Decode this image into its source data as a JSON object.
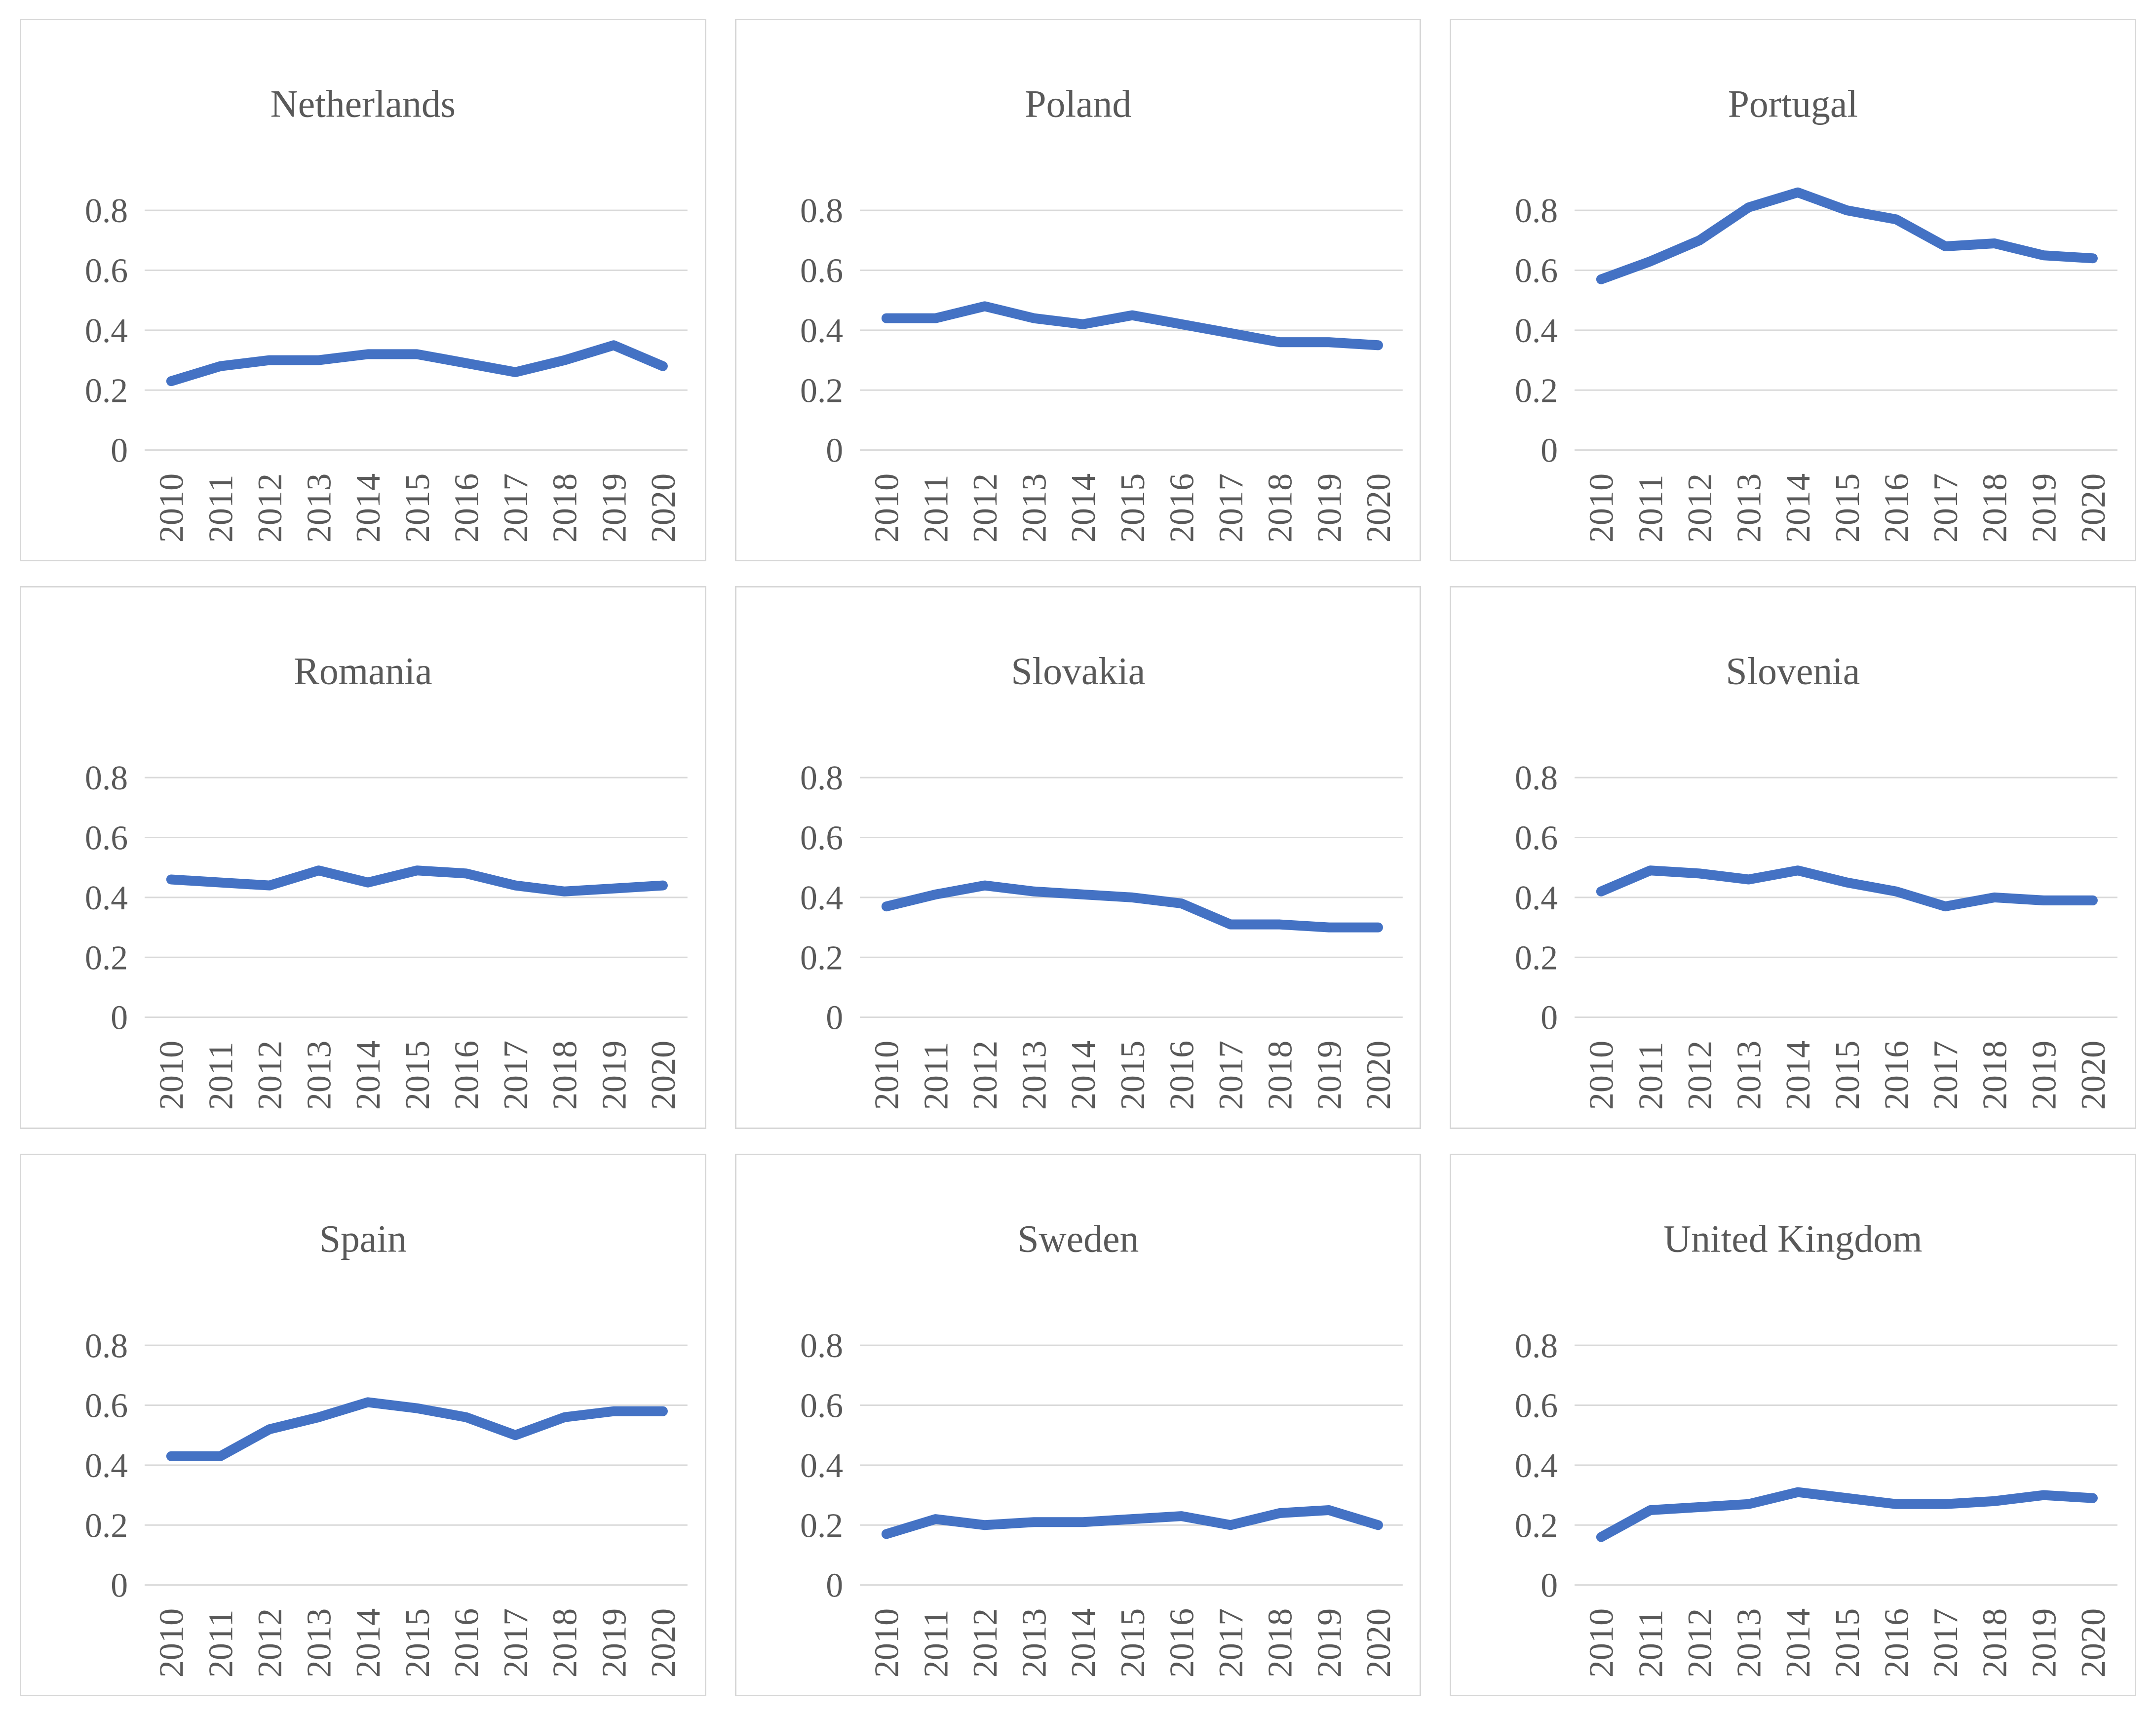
{
  "page": {
    "background": "#ffffff"
  },
  "style": {
    "line_color": "#4472C4",
    "grid_color": "#D9D9D9",
    "panel_border_color": "#D6D6D6",
    "title_color": "#595959",
    "tick_label_color": "#595959"
  },
  "axis": {
    "categories": [
      "2010",
      "2011",
      "2012",
      "2013",
      "2014",
      "2015",
      "2016",
      "2017",
      "2018",
      "2019",
      "2020"
    ],
    "ytick_values": [
      0,
      0.2,
      0.4,
      0.6,
      0.8
    ],
    "ytick_labels": [
      "0",
      "0.2",
      "0.4",
      "0.6",
      "0.8"
    ],
    "ylim": [
      0,
      0.9
    ],
    "grid": true,
    "legend": false
  },
  "chart_data": [
    {
      "type": "line",
      "title": "Netherlands",
      "categories": [
        "2010",
        "2011",
        "2012",
        "2013",
        "2014",
        "2015",
        "2016",
        "2017",
        "2018",
        "2019",
        "2020"
      ],
      "values": [
        0.23,
        0.28,
        0.3,
        0.3,
        0.32,
        0.32,
        0.29,
        0.26,
        0.3,
        0.35,
        0.28
      ],
      "ylim": [
        0,
        0.9
      ],
      "yticks": [
        0,
        0.2,
        0.4,
        0.6,
        0.8
      ]
    },
    {
      "type": "line",
      "title": "Poland",
      "categories": [
        "2010",
        "2011",
        "2012",
        "2013",
        "2014",
        "2015",
        "2016",
        "2017",
        "2018",
        "2019",
        "2020"
      ],
      "values": [
        0.44,
        0.44,
        0.48,
        0.44,
        0.42,
        0.45,
        0.42,
        0.39,
        0.36,
        0.36,
        0.35
      ],
      "ylim": [
        0,
        0.9
      ],
      "yticks": [
        0,
        0.2,
        0.4,
        0.6,
        0.8
      ]
    },
    {
      "type": "line",
      "title": "Portugal",
      "categories": [
        "2010",
        "2011",
        "2012",
        "2013",
        "2014",
        "2015",
        "2016",
        "2017",
        "2018",
        "2019",
        "2020"
      ],
      "values": [
        0.57,
        0.63,
        0.7,
        0.81,
        0.86,
        0.8,
        0.77,
        0.68,
        0.69,
        0.65,
        0.64
      ],
      "ylim": [
        0,
        0.9
      ],
      "yticks": [
        0,
        0.2,
        0.4,
        0.6,
        0.8
      ]
    },
    {
      "type": "line",
      "title": "Romania",
      "categories": [
        "2010",
        "2011",
        "2012",
        "2013",
        "2014",
        "2015",
        "2016",
        "2017",
        "2018",
        "2019",
        "2020"
      ],
      "values": [
        0.46,
        0.45,
        0.44,
        0.49,
        0.45,
        0.49,
        0.48,
        0.44,
        0.42,
        0.43,
        0.44
      ],
      "ylim": [
        0,
        0.9
      ],
      "yticks": [
        0,
        0.2,
        0.4,
        0.6,
        0.8
      ]
    },
    {
      "type": "line",
      "title": "Slovakia",
      "categories": [
        "2010",
        "2011",
        "2012",
        "2013",
        "2014",
        "2015",
        "2016",
        "2017",
        "2018",
        "2019",
        "2020"
      ],
      "values": [
        0.37,
        0.41,
        0.44,
        0.42,
        0.41,
        0.4,
        0.38,
        0.31,
        0.31,
        0.3,
        0.3
      ],
      "ylim": [
        0,
        0.9
      ],
      "yticks": [
        0,
        0.2,
        0.4,
        0.6,
        0.8
      ]
    },
    {
      "type": "line",
      "title": "Slovenia",
      "categories": [
        "2010",
        "2011",
        "2012",
        "2013",
        "2014",
        "2015",
        "2016",
        "2017",
        "2018",
        "2019",
        "2020"
      ],
      "values": [
        0.42,
        0.49,
        0.48,
        0.46,
        0.49,
        0.45,
        0.42,
        0.37,
        0.4,
        0.39,
        0.39
      ],
      "ylim": [
        0,
        0.9
      ],
      "yticks": [
        0,
        0.2,
        0.4,
        0.6,
        0.8
      ]
    },
    {
      "type": "line",
      "title": "Spain",
      "categories": [
        "2010",
        "2011",
        "2012",
        "2013",
        "2014",
        "2015",
        "2016",
        "2017",
        "2018",
        "2019",
        "2020"
      ],
      "values": [
        0.43,
        0.43,
        0.52,
        0.56,
        0.61,
        0.59,
        0.56,
        0.5,
        0.56,
        0.58,
        0.58
      ],
      "ylim": [
        0,
        0.9
      ],
      "yticks": [
        0,
        0.2,
        0.4,
        0.6,
        0.8
      ]
    },
    {
      "type": "line",
      "title": "Sweden",
      "categories": [
        "2010",
        "2011",
        "2012",
        "2013",
        "2014",
        "2015",
        "2016",
        "2017",
        "2018",
        "2019",
        "2020"
      ],
      "values": [
        0.17,
        0.22,
        0.2,
        0.21,
        0.21,
        0.22,
        0.23,
        0.2,
        0.24,
        0.25,
        0.2
      ],
      "ylim": [
        0,
        0.9
      ],
      "yticks": [
        0,
        0.2,
        0.4,
        0.6,
        0.8
      ]
    },
    {
      "type": "line",
      "title": "United Kingdom",
      "categories": [
        "2010",
        "2011",
        "2012",
        "2013",
        "2014",
        "2015",
        "2016",
        "2017",
        "2018",
        "2019",
        "2020"
      ],
      "values": [
        0.16,
        0.25,
        0.26,
        0.27,
        0.31,
        0.29,
        0.27,
        0.27,
        0.28,
        0.3,
        0.29
      ],
      "ylim": [
        0,
        0.9
      ],
      "yticks": [
        0,
        0.2,
        0.4,
        0.6,
        0.8
      ]
    }
  ]
}
